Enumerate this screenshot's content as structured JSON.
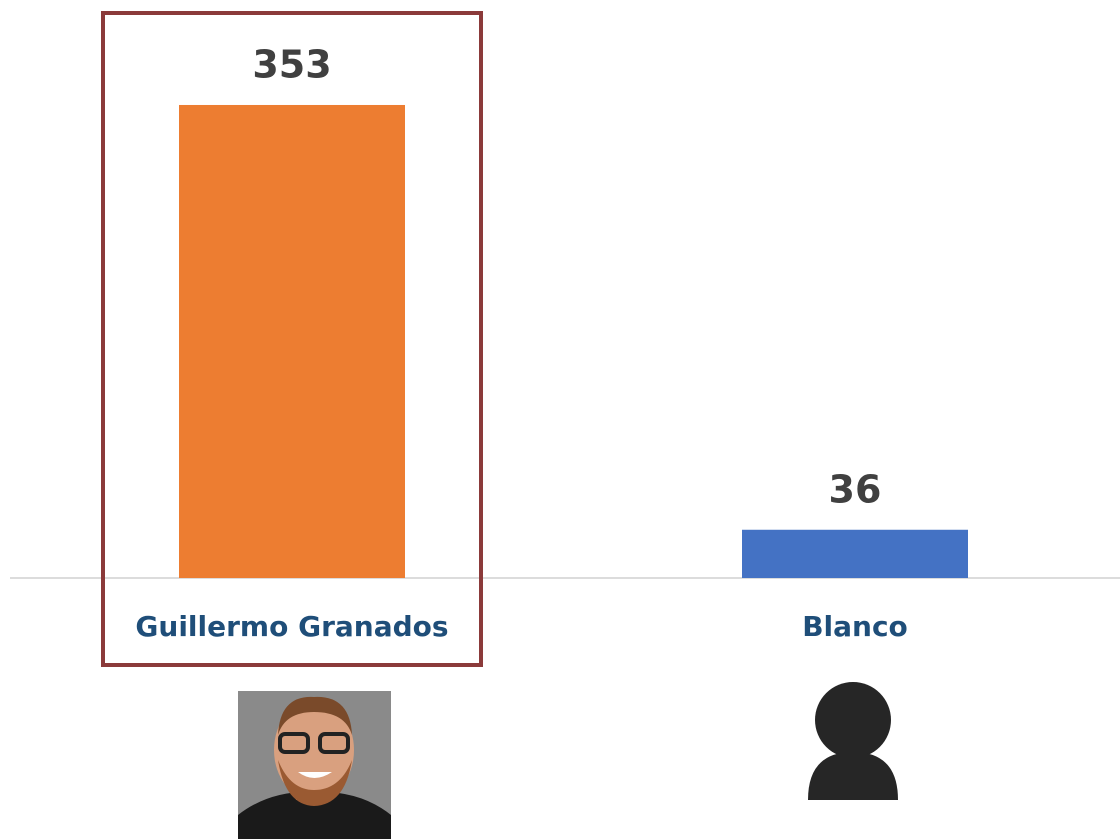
{
  "chart_data": {
    "type": "bar",
    "categories": [
      "Guillermo Granados",
      "Blanco"
    ],
    "values": [
      353,
      36
    ],
    "colors": [
      "#ED7D31",
      "#4472C4"
    ],
    "ylim": [
      0,
      400
    ]
  }
}
